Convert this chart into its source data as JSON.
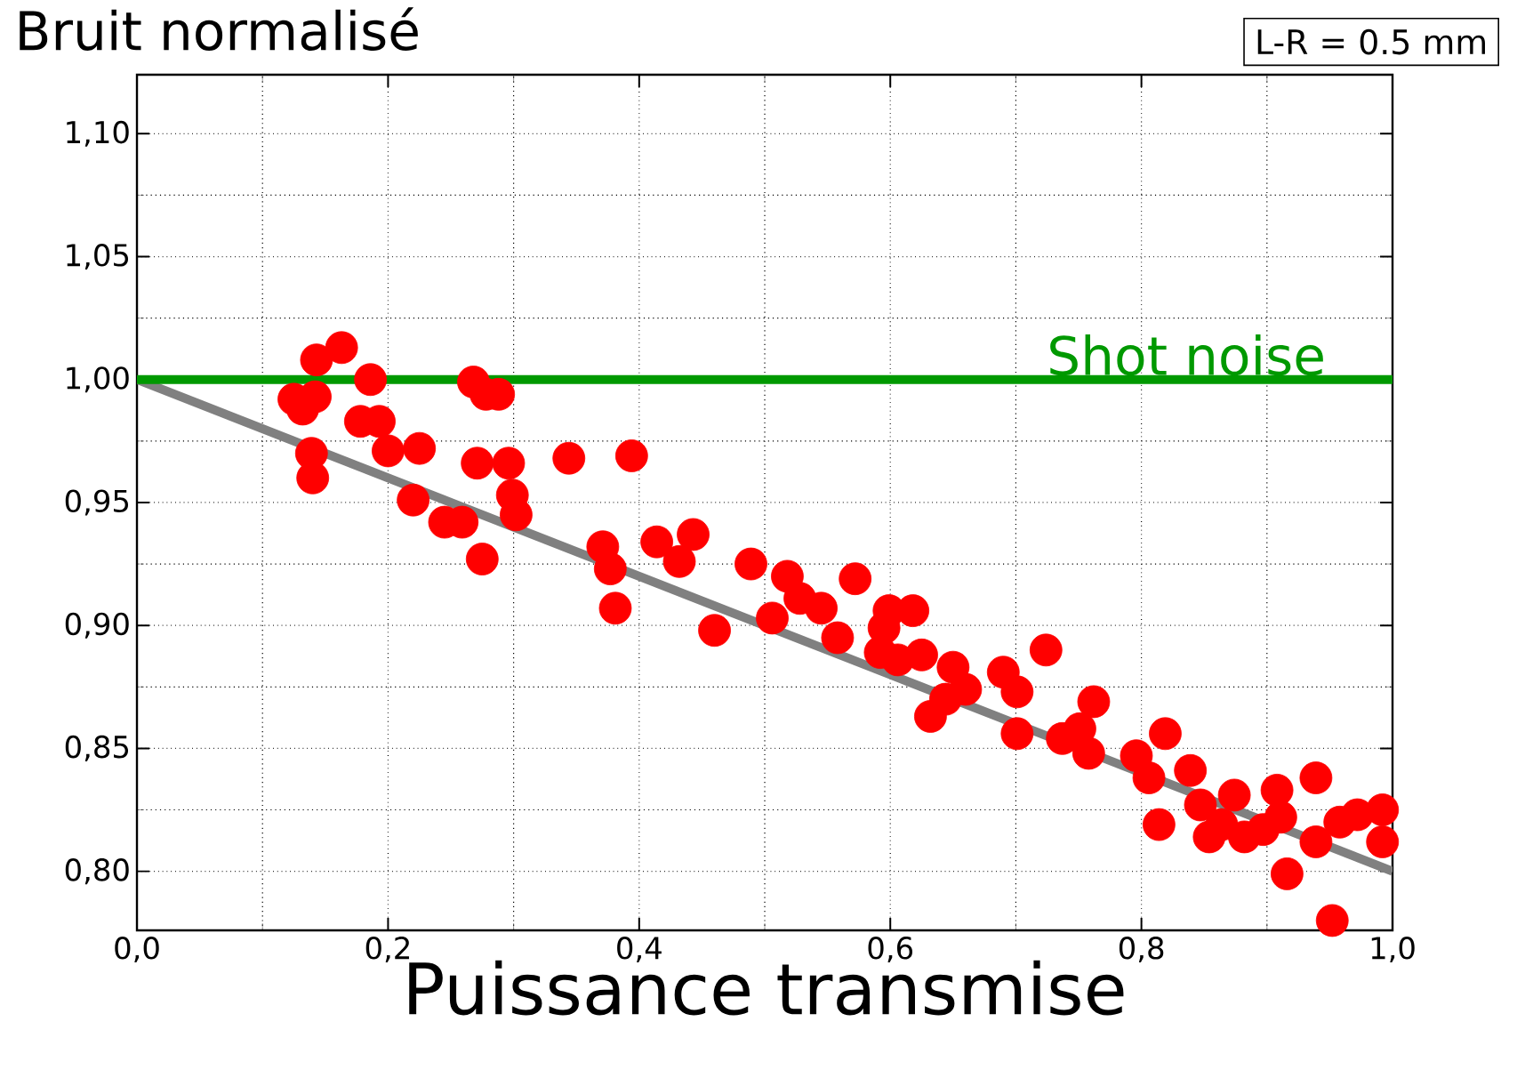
{
  "chart_data": {
    "type": "scatter",
    "title": "Bruit normalisé",
    "xlabel": "Puissance transmise",
    "annotations": [
      "L-R = 0.5 mm"
    ],
    "xlim": [
      0,
      1
    ],
    "ylim": [
      0.776,
      1.124
    ],
    "xticks": [
      {
        "value": 0,
        "label": "0,0"
      },
      {
        "value": 0.2,
        "label": "0,2"
      },
      {
        "value": 0.4,
        "label": "0,4"
      },
      {
        "value": 0.6,
        "label": "0,6"
      },
      {
        "value": 0.8,
        "label": "0,8"
      },
      {
        "value": 1.0,
        "label": "1,0"
      }
    ],
    "yticks": [
      {
        "value": 0.8,
        "label": "0,80"
      },
      {
        "value": 0.85,
        "label": "0,85"
      },
      {
        "value": 0.9,
        "label": "0,90"
      },
      {
        "value": 0.95,
        "label": "0,95"
      },
      {
        "value": 1.0,
        "label": "1,00"
      },
      {
        "value": 1.05,
        "label": "1,05"
      },
      {
        "value": 1.1,
        "label": "1,10"
      }
    ],
    "grid": true,
    "marker": "circle",
    "ref_lines": [
      {
        "axis": "y",
        "value": 1.0,
        "label": "Shot noise",
        "color": "#009900",
        "line_style": "solid"
      }
    ],
    "series": [
      {
        "color": "#ff0000",
        "x": [
          0.125,
          0.132,
          0.142,
          0.139,
          0.14,
          0.143,
          0.163,
          0.186,
          0.268,
          0.278,
          0.288,
          0.178,
          0.193,
          0.2,
          0.225,
          0.22,
          0.245,
          0.259,
          0.275,
          0.271,
          0.296,
          0.299,
          0.302,
          0.344,
          0.394,
          0.371,
          0.377,
          0.381,
          0.414,
          0.432,
          0.443,
          0.46,
          0.489,
          0.518,
          0.528,
          0.545,
          0.572,
          0.506,
          0.558,
          0.599,
          0.618,
          0.595,
          0.592,
          0.606,
          0.625,
          0.65,
          0.66,
          0.644,
          0.632,
          0.69,
          0.701,
          0.724,
          0.701,
          0.737,
          0.751,
          0.758,
          0.762,
          0.796,
          0.806,
          0.819,
          0.814,
          0.839,
          0.847,
          0.874,
          0.854,
          0.864,
          0.882,
          0.897,
          0.908,
          0.911,
          0.939,
          0.939,
          0.916,
          0.958,
          0.972,
          0.992,
          0.992,
          0.952
        ],
        "values": [
          0.992,
          0.988,
          0.993,
          0.97,
          0.96,
          1.008,
          1.013,
          1.0,
          0.999,
          0.994,
          0.994,
          0.983,
          0.983,
          0.971,
          0.972,
          0.951,
          0.942,
          0.942,
          0.927,
          0.966,
          0.966,
          0.953,
          0.945,
          0.968,
          0.969,
          0.932,
          0.923,
          0.907,
          0.934,
          0.926,
          0.937,
          0.898,
          0.925,
          0.92,
          0.911,
          0.907,
          0.919,
          0.903,
          0.895,
          0.906,
          0.906,
          0.899,
          0.889,
          0.886,
          0.888,
          0.883,
          0.874,
          0.87,
          0.863,
          0.881,
          0.873,
          0.89,
          0.856,
          0.854,
          0.858,
          0.848,
          0.869,
          0.847,
          0.838,
          0.856,
          0.819,
          0.841,
          0.827,
          0.831,
          0.814,
          0.819,
          0.814,
          0.817,
          0.833,
          0.822,
          0.838,
          0.812,
          0.799,
          0.82,
          0.823,
          0.825,
          0.812,
          0.78
        ]
      },
      {
        "type": "line",
        "color": "#808080",
        "line_style": "solid",
        "marker": "none",
        "x": [
          0,
          1
        ],
        "values": [
          1.0,
          0.8
        ]
      }
    ]
  }
}
